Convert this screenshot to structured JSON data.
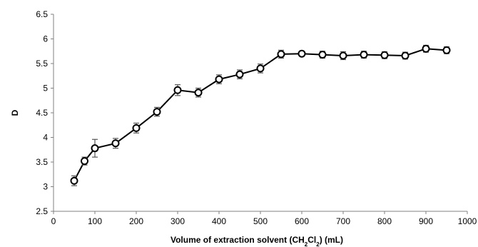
{
  "chart_data": {
    "type": "line",
    "xlabel": "Volume of extraction solvent (CH2Cl2) (mL)",
    "xlabel_parts": {
      "before": "Volume of extraction solvent (CH",
      "sub1": "2",
      "mid": "Cl",
      "sub2": "2",
      "after": ") (mL)"
    },
    "ylabel": "D",
    "xlim": [
      0,
      1000
    ],
    "ylim": [
      2.5,
      6.5
    ],
    "x_ticks": [
      0,
      100,
      200,
      300,
      400,
      500,
      600,
      700,
      800,
      900,
      1000
    ],
    "y_ticks": [
      2.5,
      3,
      3.5,
      4,
      4.5,
      5,
      5.5,
      6,
      6.5
    ],
    "y_tick_labels": [
      "2.5",
      "3",
      "3.5",
      "4",
      "4.5",
      "5",
      "5.5",
      "6",
      "6.5"
    ],
    "grid": false,
    "line_color": "#000000",
    "marker": "open-circle",
    "series": [
      {
        "x": [
          50,
          75,
          100,
          150,
          200,
          250,
          300,
          350,
          400,
          450,
          500,
          550,
          600,
          650,
          700,
          750,
          800,
          850,
          900,
          950
        ],
        "values": [
          3.12,
          3.52,
          3.78,
          3.88,
          4.19,
          4.52,
          4.96,
          4.91,
          5.18,
          5.28,
          5.4,
          5.69,
          5.7,
          5.68,
          5.66,
          5.68,
          5.67,
          5.66,
          5.8,
          5.77
        ],
        "error": [
          0.1,
          0.08,
          0.18,
          0.1,
          0.1,
          0.09,
          0.11,
          0.09,
          0.09,
          0.09,
          0.09,
          0.08,
          0.05,
          0.07,
          0.08,
          0.07,
          0.07,
          0.07,
          0.07,
          0.07
        ]
      }
    ]
  }
}
